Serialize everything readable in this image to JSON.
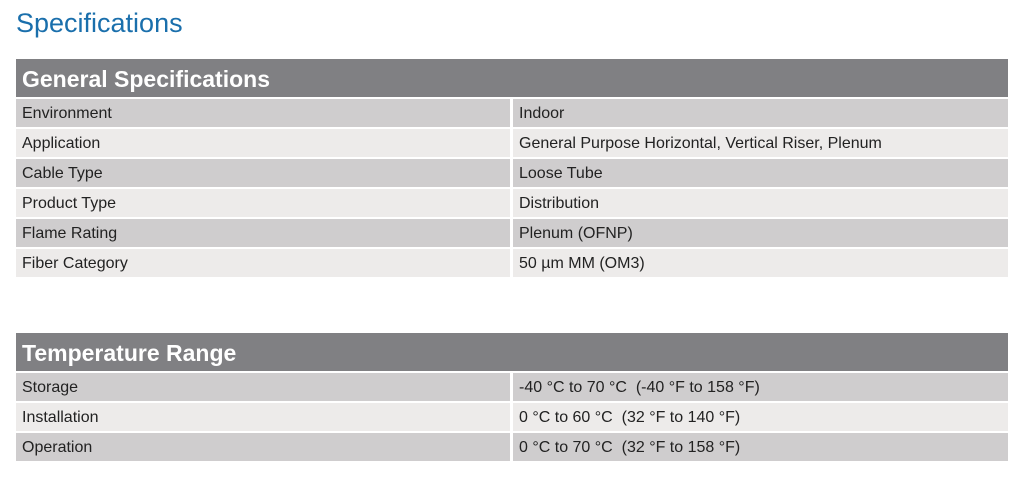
{
  "page_title": "Specifications",
  "general": {
    "heading": "General Specifications",
    "rows": [
      {
        "label": "Environment",
        "value": "Indoor"
      },
      {
        "label": "Application",
        "value": "General Purpose Horizontal, Vertical Riser, Plenum"
      },
      {
        "label": "Cable Type",
        "value": "Loose Tube"
      },
      {
        "label": "Product Type",
        "value": "Distribution"
      },
      {
        "label": "Flame Rating",
        "value": "Plenum (OFNP)"
      },
      {
        "label": "Fiber Category",
        "value": "50 µm MM (OM3)"
      }
    ]
  },
  "temperature": {
    "heading": "Temperature Range",
    "rows": [
      {
        "label": "Storage",
        "value": "-40 °C to 70 °C  (-40 °F to 158 °F)"
      },
      {
        "label": "Installation",
        "value": "0 °C to 60 °C  (32 °F to 140 °F)"
      },
      {
        "label": "Operation",
        "value": "0 °C to 70 °C  (32 °F to 158 °F)"
      }
    ]
  }
}
